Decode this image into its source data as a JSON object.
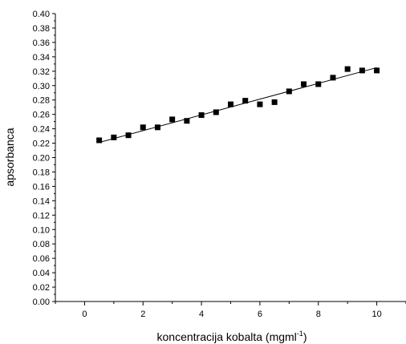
{
  "chart_data": {
    "type": "scatter",
    "xlabel": "koncentracija kobalta (mgml",
    "xlabel_sup": "-1",
    "xlabel_suffix": ")",
    "ylabel": "apsorbanca",
    "xlim": [
      -1,
      11
    ],
    "ylim": [
      0.0,
      0.4
    ],
    "x_ticks": [
      0,
      2,
      4,
      6,
      8,
      10
    ],
    "x_tick_labels": [
      "0",
      "2",
      "4",
      "6",
      "8",
      "10"
    ],
    "y_ticks": [
      0.0,
      0.02,
      0.04,
      0.06,
      0.08,
      0.1,
      0.12,
      0.14,
      0.16,
      0.18,
      0.2,
      0.22,
      0.24,
      0.26,
      0.28,
      0.3,
      0.32,
      0.34,
      0.36,
      0.38,
      0.4
    ],
    "y_tick_labels": [
      "0.00",
      "0.02",
      "0.04",
      "0.06",
      "0.08",
      "0.10",
      "0.12",
      "0.14",
      "0.16",
      "0.18",
      "0.20",
      "0.22",
      "0.24",
      "0.26",
      "0.28",
      "0.30",
      "0.32",
      "0.34",
      "0.36",
      "0.38",
      "0.40"
    ],
    "grid": false,
    "legend": false,
    "series": [
      {
        "marker": "square",
        "color": "#000000",
        "x": [
          0.5,
          1.0,
          1.5,
          2.0,
          2.5,
          3.0,
          3.5,
          4.0,
          4.5,
          5.0,
          5.5,
          6.0,
          6.5,
          7.0,
          7.5,
          8.0,
          8.5,
          9.0,
          9.5,
          10.0
        ],
        "y": [
          0.224,
          0.228,
          0.231,
          0.242,
          0.242,
          0.253,
          0.251,
          0.259,
          0.263,
          0.274,
          0.279,
          0.274,
          0.277,
          0.292,
          0.302,
          0.302,
          0.311,
          0.323,
          0.321,
          0.321
        ]
      }
    ],
    "fit_line": {
      "x": [
        0.5,
        10.0
      ],
      "y": [
        0.221,
        0.325
      ],
      "color": "#000000"
    }
  }
}
